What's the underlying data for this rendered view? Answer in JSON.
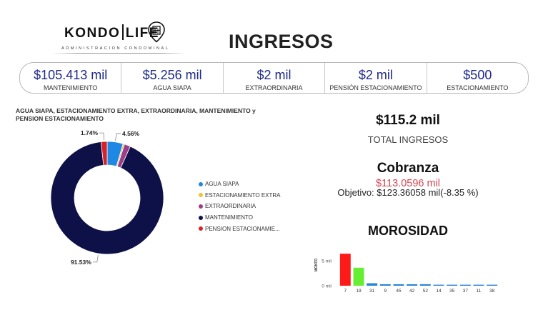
{
  "header": {
    "logo_part1": "KONDO",
    "logo_part2": "LIFE",
    "logo_tagline": "ADMINISTRACION CONDOMINAL",
    "title": "INGRESOS"
  },
  "kpis": [
    {
      "value": "$105.413 mil",
      "label": "MANTENIMIENTO"
    },
    {
      "value": "$5.256 mil",
      "label": "AGUA SIAPA"
    },
    {
      "value": "$2 mil",
      "label": "EXTRAORDINARIA"
    },
    {
      "value": "$2 mil",
      "label": "PENSIÓN ESTACIONAMIENTO"
    },
    {
      "value": "$500",
      "label": "ESTACIONAMIENTO"
    }
  ],
  "total": {
    "value": "$115.2 mil",
    "label": "TOTAL INGRESOS"
  },
  "cobranza": {
    "title": "Cobranza",
    "value": "$113.0596 mil",
    "goal": "Objetivo: $123.36058 mil(-8.35 %)"
  },
  "morosidad_title": "MOROSIDAD",
  "icons": {
    "logo": "building-location-pin-icon"
  },
  "chart_data": [
    {
      "type": "pie",
      "donut": true,
      "title": "AGUA SIAPA, ESTACIONAMIENTO EXTRA, EXTRAORDINARIA, MANTENIMIENTO y PENSION ESTACIONAMIENTO",
      "series": [
        {
          "name": "AGUA SIAPA",
          "percent": 4.56,
          "label": "4.56%",
          "color": "#1e88e5"
        },
        {
          "name": "ESTACIONAMIENTO EXTRA",
          "percent": 0.43,
          "label": "",
          "color": "#f2c230"
        },
        {
          "name": "EXTRAORDINARIA",
          "percent": 1.74,
          "label": "",
          "color": "#9b3d8a"
        },
        {
          "name": "MANTENIMIENTO",
          "percent": 91.53,
          "label": "91.53%",
          "color": "#0d1147"
        },
        {
          "name": "PENSION ESTACIONAMIE...",
          "percent": 1.74,
          "label": "1.74%",
          "color": "#d92128"
        }
      ],
      "legend_position": "right"
    },
    {
      "type": "bar",
      "categories": [
        "7",
        "19",
        "31",
        "9",
        "45",
        "42",
        "52",
        "14",
        "35",
        "37",
        "11",
        "38"
      ],
      "values": [
        6.4,
        3.6,
        0.5,
        0.3,
        0.3,
        0.3,
        0.3,
        0.2,
        0.2,
        0.2,
        0.2,
        0.2
      ],
      "colors": [
        "#ff1a1a",
        "#66ee33",
        "#2a84d6",
        "#2a84d6",
        "#2a84d6",
        "#2a84d6",
        "#2a84d6",
        "#2a84d6",
        "#2a84d6",
        "#2a84d6",
        "#2a84d6",
        "#2a84d6"
      ],
      "ylabel": "MONTO",
      "yticks": [
        {
          "value": 0,
          "label": "0 mil"
        },
        {
          "value": 5,
          "label": "5 mil"
        }
      ],
      "ylim": [
        0,
        7
      ]
    }
  ]
}
